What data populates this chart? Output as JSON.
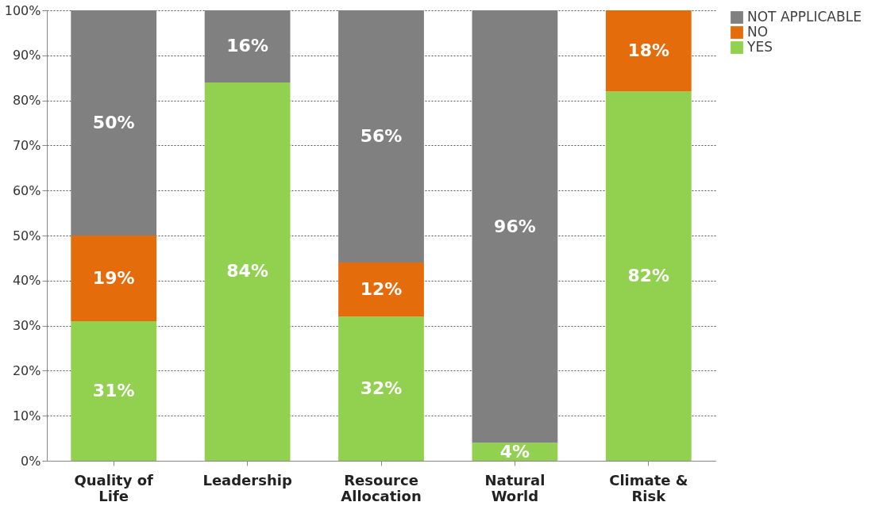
{
  "chart_data": {
    "type": "bar",
    "stacked": true,
    "categories": [
      "Quality of Life",
      "Leadership",
      "Resource Allocation",
      "Natural World",
      "Climate & Risk"
    ],
    "series": [
      {
        "name": "YES",
        "color": "#92d050",
        "values": [
          31,
          84,
          32,
          4,
          82
        ],
        "value_labels": [
          "31%",
          "84%",
          "32%",
          "4%",
          "82%"
        ]
      },
      {
        "name": "NO",
        "color": "#e46c0a",
        "values": [
          19,
          null,
          12,
          null,
          18
        ],
        "value_labels": [
          "19%",
          null,
          "12%",
          null,
          "18%"
        ]
      },
      {
        "name": "NOT APPLICABLE",
        "color": "#808080",
        "values": [
          50,
          16,
          56,
          96,
          null
        ],
        "value_labels": [
          "50%",
          "16%",
          "56%",
          "96%",
          null
        ]
      }
    ],
    "ylim": [
      0,
      100
    ],
    "yticks": [
      {
        "value": 0,
        "label": "0%"
      },
      {
        "value": 10,
        "label": "10%"
      },
      {
        "value": 20,
        "label": "20%"
      },
      {
        "value": 30,
        "label": "30%"
      },
      {
        "value": 40,
        "label": "40%"
      },
      {
        "value": 50,
        "label": "50%"
      },
      {
        "value": 60,
        "label": "60%"
      },
      {
        "value": 70,
        "label": "70%"
      },
      {
        "value": 80,
        "label": "80%"
      },
      {
        "value": 90,
        "label": "90%"
      },
      {
        "value": 100,
        "label": "100%"
      }
    ],
    "grid": "y",
    "legend": "right"
  }
}
